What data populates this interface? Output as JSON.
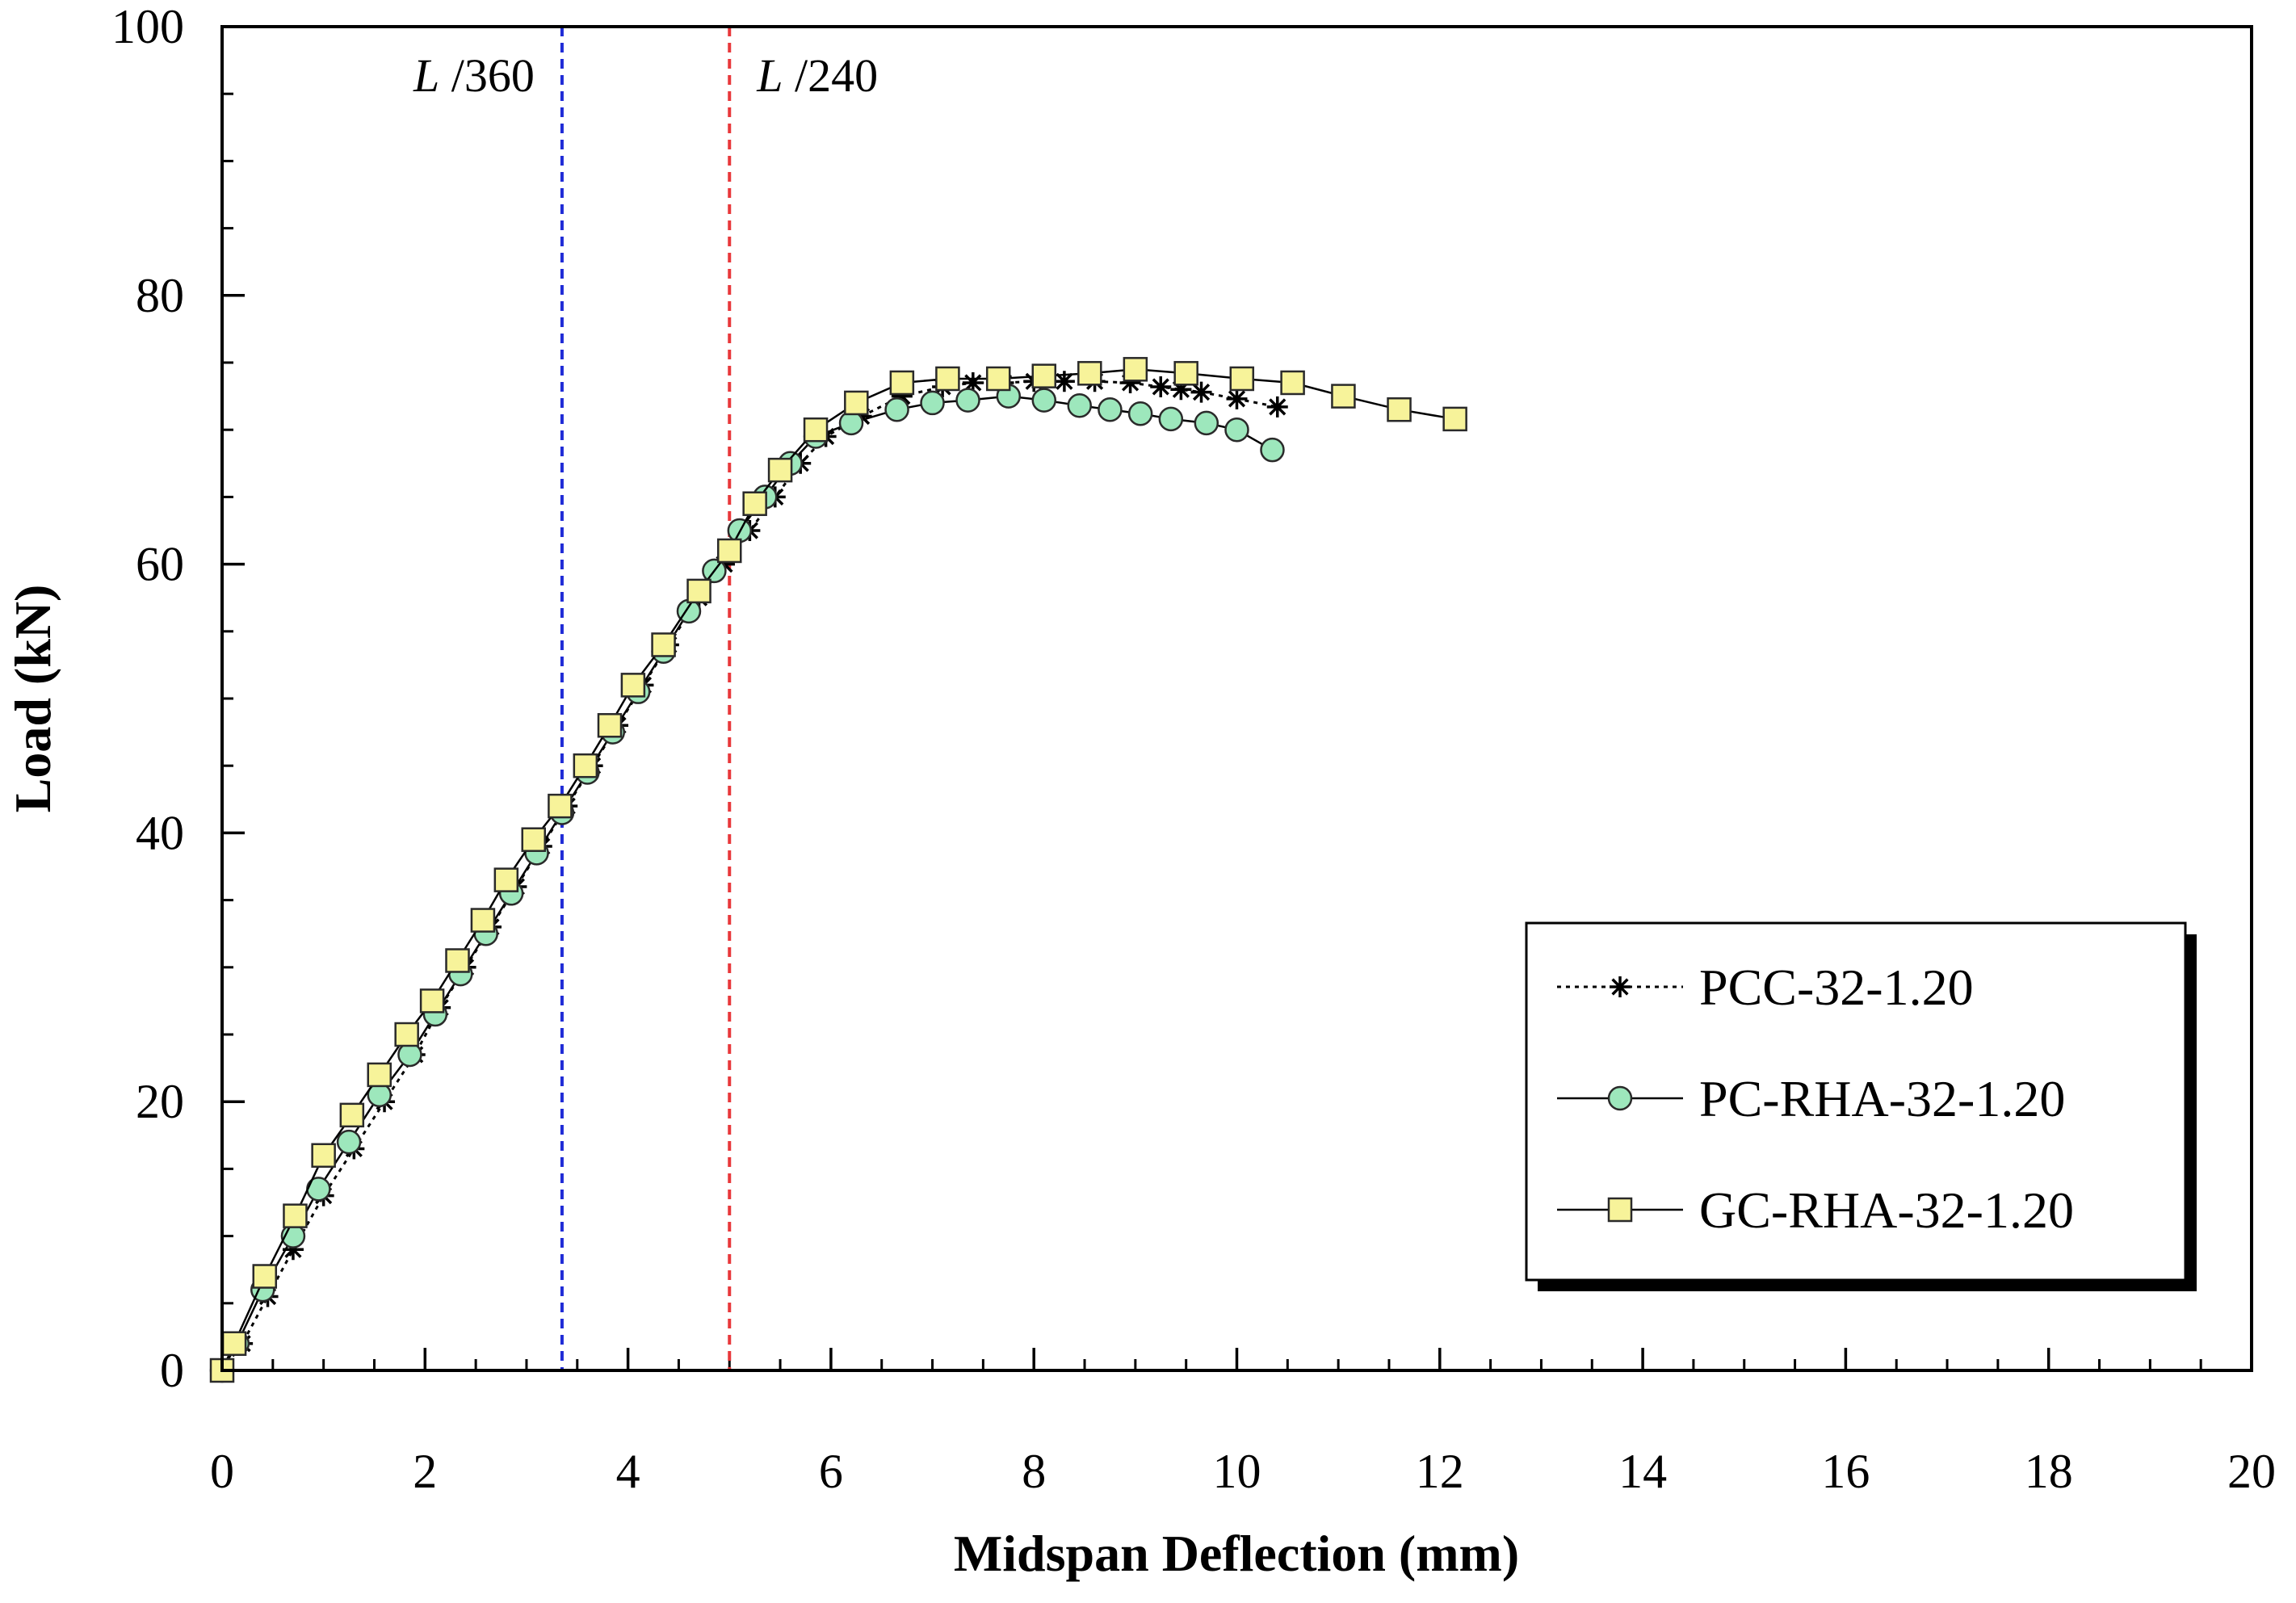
{
  "chart_data": {
    "type": "line",
    "xlabel": "Midspan Deflection (mm)",
    "ylabel": "Load (kN)",
    "xlim": [
      0,
      20
    ],
    "ylim": [
      0,
      100
    ],
    "x_ticks": [
      0,
      2,
      4,
      6,
      8,
      10,
      12,
      14,
      16,
      18,
      20
    ],
    "y_ticks": [
      0,
      20,
      40,
      60,
      80,
      100
    ],
    "x_minor_step": 0.5,
    "y_minor_step": 5,
    "grid": false,
    "legend_position": "bottom-right",
    "reference_lines": [
      {
        "label": "L /360",
        "label_main": "L",
        "label_rest": " /360",
        "x": 3.35,
        "color": "#1f2bd6"
      },
      {
        "label": "L /240",
        "label_main": "L",
        "label_rest": " /240",
        "x": 5.0,
        "color": "#e8383b"
      }
    ],
    "series": [
      {
        "name": "PCC-32-1.20",
        "marker": "asterisk",
        "line_style": "dotted",
        "line_color": "#000000",
        "marker_color": "#000000",
        "x": [
          0,
          0.2,
          0.45,
          0.7,
          1.0,
          1.3,
          1.6,
          1.9,
          2.15,
          2.4,
          2.65,
          2.9,
          3.15,
          3.4,
          3.65,
          3.9,
          4.15,
          4.4,
          4.7,
          4.95,
          5.2,
          5.45,
          5.7,
          5.95,
          6.3,
          6.7,
          7.1,
          7.4,
          7.7,
          8.0,
          8.3,
          8.6,
          8.95,
          9.25,
          9.45,
          9.65,
          10.0,
          10.4
        ],
        "y": [
          0,
          2,
          5.5,
          9,
          13,
          16.5,
          20,
          23.5,
          27,
          30,
          33,
          36,
          39,
          42,
          45,
          48,
          51,
          54,
          57.5,
          60,
          62.5,
          65,
          67.5,
          69.5,
          71,
          72.5,
          73.2,
          73.5,
          73.5,
          73.6,
          73.6,
          73.6,
          73.5,
          73.2,
          73.0,
          72.8,
          72.3,
          71.7
        ]
      },
      {
        "name": "PC-RHA-32-1.20",
        "marker": "circle",
        "line_style": "solid",
        "line_color": "#000000",
        "marker_color": "#9de7bc",
        "x": [
          0,
          0.15,
          0.4,
          0.7,
          0.95,
          1.25,
          1.55,
          1.85,
          2.1,
          2.35,
          2.6,
          2.85,
          3.1,
          3.35,
          3.6,
          3.85,
          4.1,
          4.35,
          4.6,
          4.85,
          5.1,
          5.35,
          5.6,
          5.85,
          6.2,
          6.65,
          7.0,
          7.35,
          7.75,
          8.1,
          8.45,
          8.75,
          9.05,
          9.35,
          9.7,
          10.0,
          10.35
        ],
        "y": [
          0,
          2,
          6,
          10,
          13.5,
          17,
          20.5,
          23.5,
          26.5,
          29.5,
          32.5,
          35.5,
          38.5,
          41.5,
          44.5,
          47.5,
          50.5,
          53.5,
          56.5,
          59.5,
          62.5,
          65,
          67.5,
          69.5,
          70.5,
          71.5,
          72.0,
          72.2,
          72.5,
          72.2,
          71.8,
          71.5,
          71.2,
          70.8,
          70.5,
          70.0,
          68.5
        ]
      },
      {
        "name": "GC-RHA-32-1.20",
        "marker": "square",
        "line_style": "solid",
        "line_color": "#000000",
        "marker_color": "#f7f39a",
        "x": [
          0,
          0.12,
          0.42,
          0.72,
          1.0,
          1.28,
          1.55,
          1.82,
          2.07,
          2.32,
          2.57,
          2.8,
          3.07,
          3.33,
          3.58,
          3.82,
          4.05,
          4.35,
          4.7,
          5.0,
          5.25,
          5.5,
          5.85,
          6.25,
          6.7,
          7.15,
          7.65,
          8.1,
          8.55,
          9.0,
          9.5,
          10.05,
          10.55,
          11.05,
          11.6,
          12.15
        ],
        "y": [
          0,
          2,
          7,
          11.5,
          16,
          19,
          22,
          25,
          27.5,
          30.5,
          33.5,
          36.5,
          39.5,
          42,
          45,
          48,
          51,
          54,
          58,
          61,
          64.5,
          67,
          70,
          72,
          73.5,
          73.8,
          73.8,
          74.0,
          74.2,
          74.5,
          74.2,
          73.8,
          73.5,
          72.5,
          71.5,
          70.8
        ]
      }
    ]
  }
}
